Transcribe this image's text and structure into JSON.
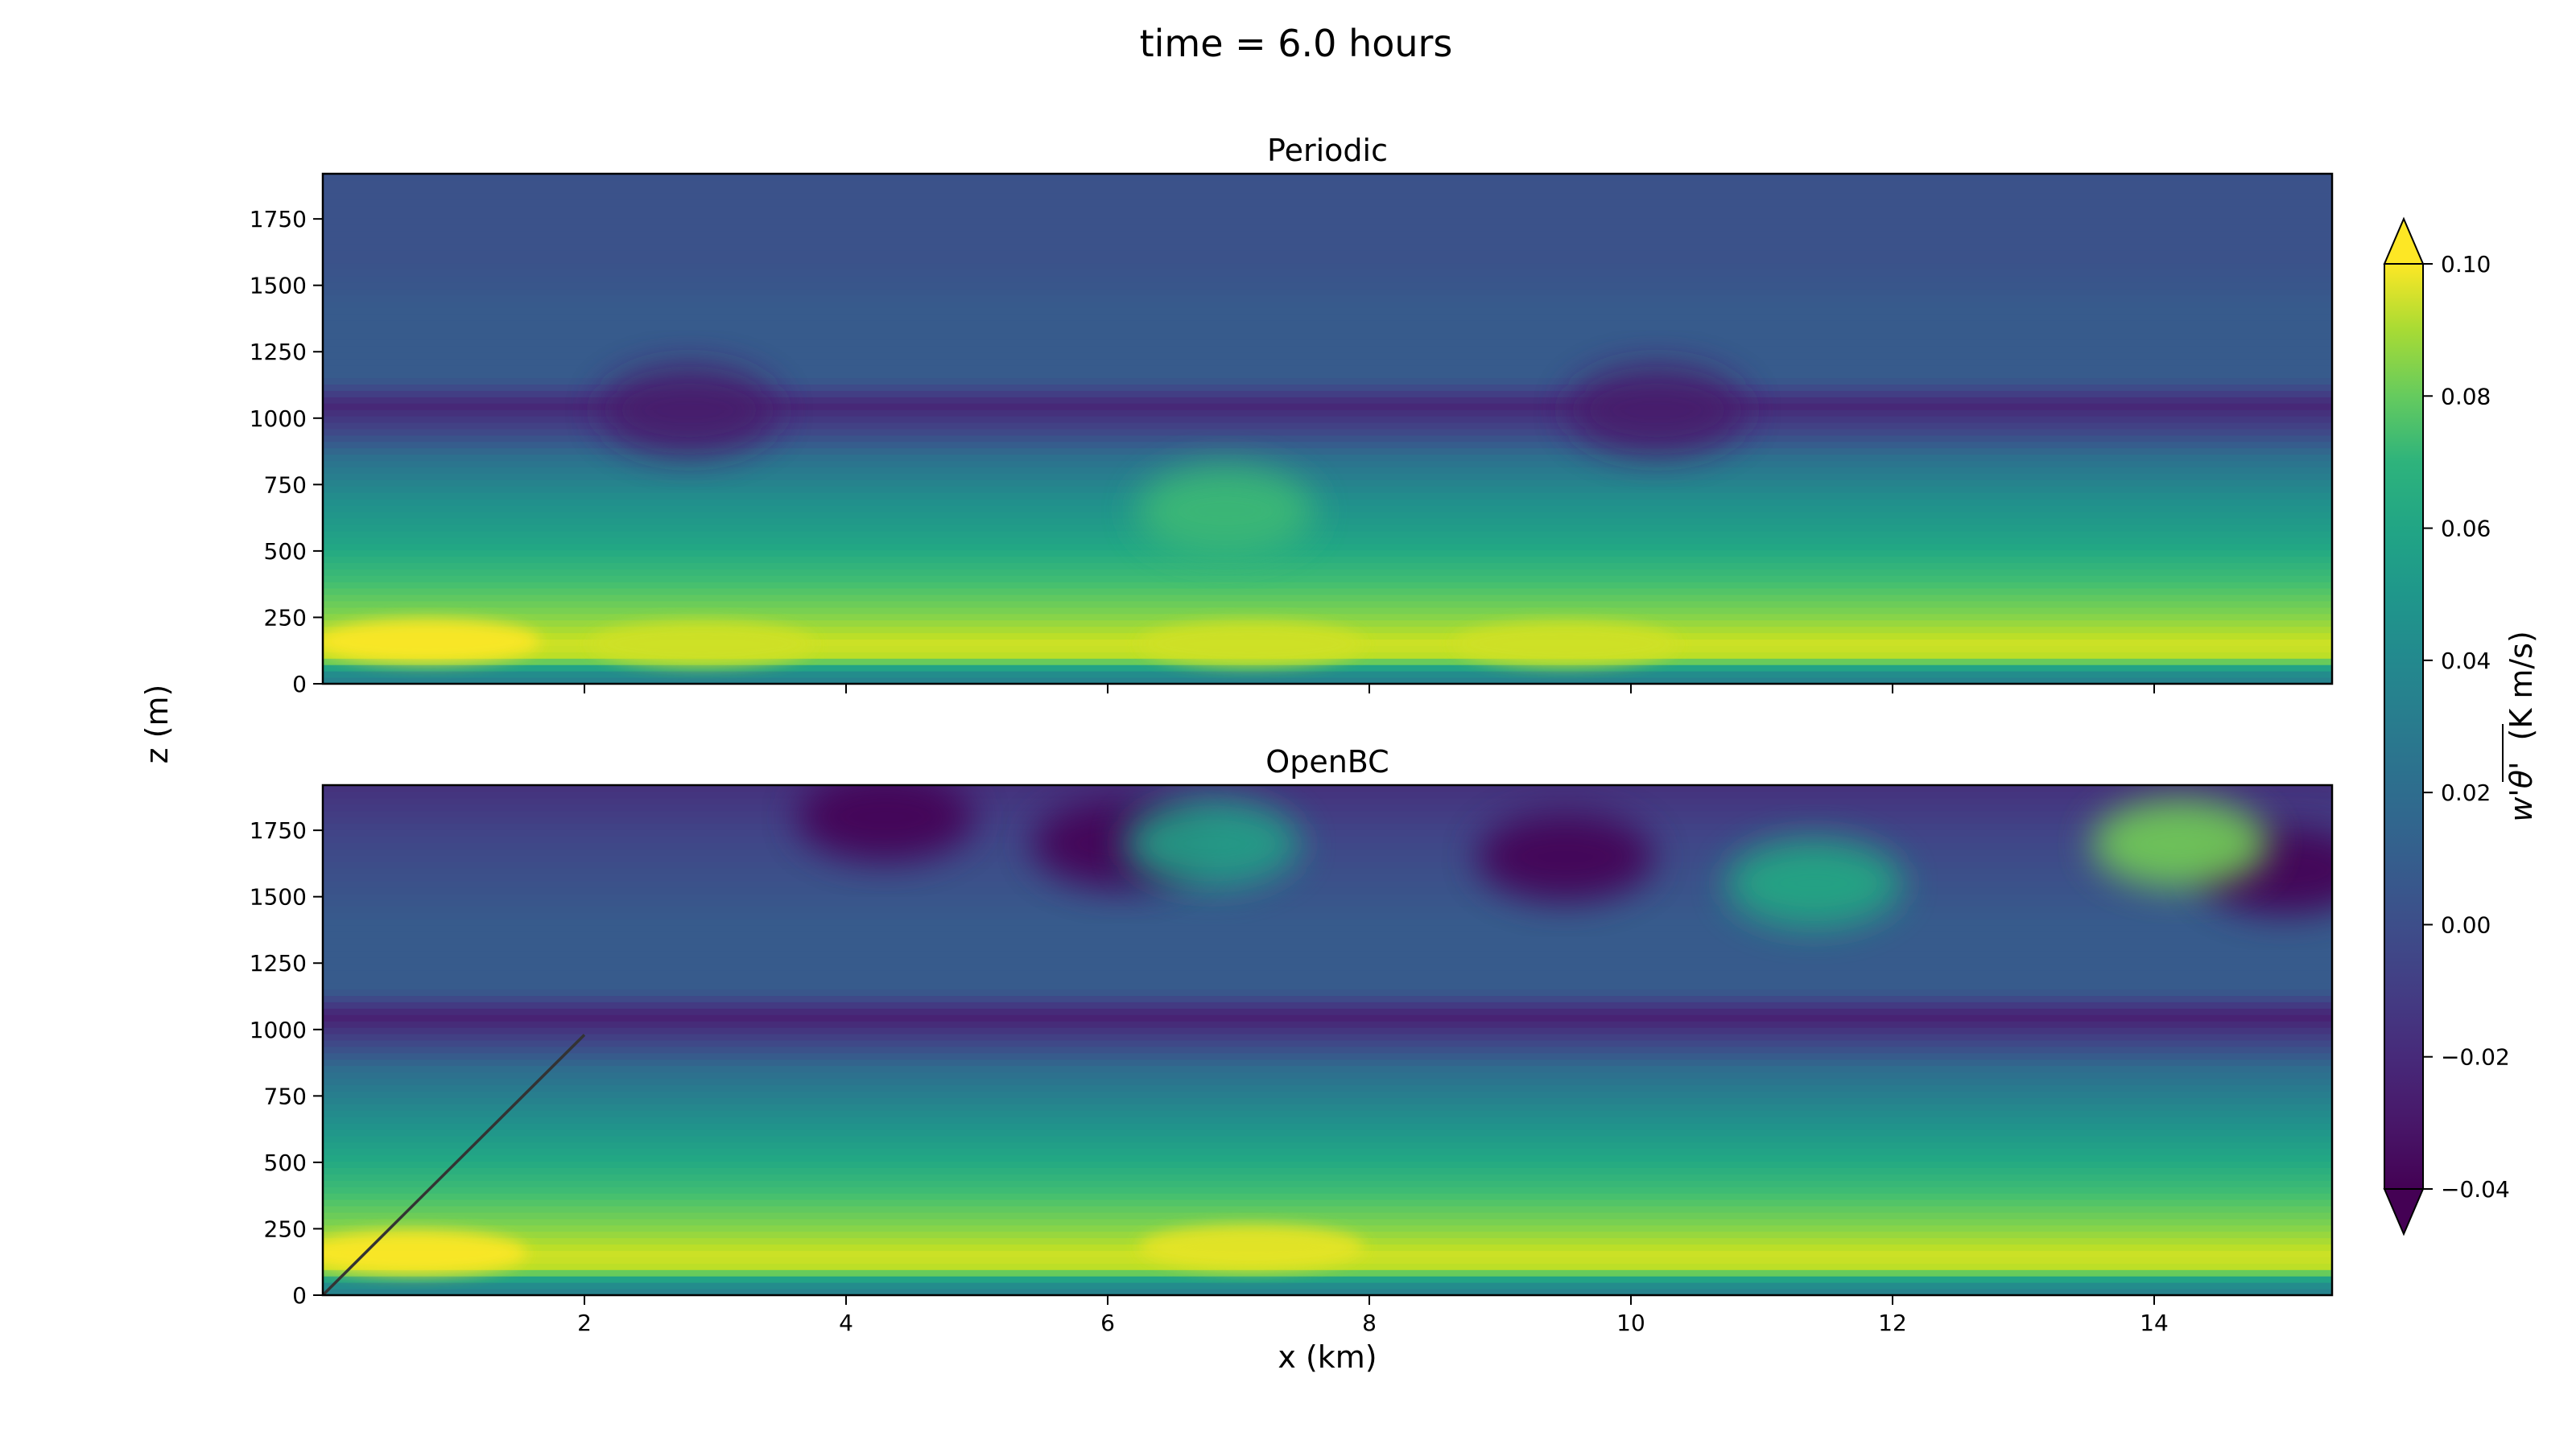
{
  "suptitle": "time = 6.0 hours",
  "shared": {
    "xlabel": "x (km)",
    "ylabel": "z (m)",
    "xlim": [
      0,
      15.36
    ],
    "ylim": [
      0,
      1920
    ],
    "x_ticks": [
      2,
      4,
      6,
      8,
      10,
      12,
      14
    ],
    "y_ticks": [
      0,
      250,
      500,
      750,
      1000,
      1250,
      1500,
      1750
    ]
  },
  "colorbar": {
    "label": "w'θ' (K m/s)",
    "label_main": "w'θ'",
    "label_unit": "(K m/s)",
    "ticks": [
      "0.10",
      "0.08",
      "0.06",
      "0.04",
      "0.02",
      "0.00",
      "−0.02",
      "−0.04"
    ],
    "range": [
      -0.04,
      0.1
    ],
    "extend": "both",
    "colormap": "viridis"
  },
  "chart_data": [
    {
      "type": "heatmap",
      "title": "Periodic",
      "xlabel": "",
      "ylabel": "z (m)",
      "x_range_km": [
        0,
        15.36
      ],
      "z_range_m": [
        0,
        1920
      ],
      "levels": [
        -0.04,
        -0.03,
        -0.02,
        -0.01,
        0.0,
        0.01,
        0.02,
        0.03,
        0.04,
        0.05,
        0.06,
        0.07,
        0.08,
        0.09,
        0.1
      ],
      "vertical_profile": [
        {
          "z": 0,
          "value": 0.02
        },
        {
          "z": 50,
          "value": 0.03
        },
        {
          "z": 100,
          "value": 0.085
        },
        {
          "z": 150,
          "value": 0.09
        },
        {
          "z": 250,
          "value": 0.075
        },
        {
          "z": 400,
          "value": 0.055
        },
        {
          "z": 550,
          "value": 0.04
        },
        {
          "z": 700,
          "value": 0.028
        },
        {
          "z": 850,
          "value": 0.012
        },
        {
          "z": 950,
          "value": -0.01
        },
        {
          "z": 1050,
          "value": -0.025
        },
        {
          "z": 1150,
          "value": 0.0
        },
        {
          "z": 1400,
          "value": 0.0
        },
        {
          "z": 1600,
          "value": -0.005
        },
        {
          "z": 1920,
          "value": -0.005
        }
      ],
      "features": [
        {
          "x": 0.8,
          "z": 160,
          "value": 0.1
        },
        {
          "x": 2.9,
          "z": 150,
          "value": 0.09
        },
        {
          "x": 7.1,
          "z": 150,
          "value": 0.09
        },
        {
          "x": 9.5,
          "z": 150,
          "value": 0.09
        },
        {
          "x": 6.9,
          "z": 650,
          "value": 0.055
        },
        {
          "x": 10.2,
          "z": 1030,
          "value": -0.03
        },
        {
          "x": 2.8,
          "z": 1030,
          "value": -0.03
        }
      ]
    },
    {
      "type": "heatmap",
      "title": "OpenBC",
      "xlabel": "x (km)",
      "ylabel": "z (m)",
      "x_range_km": [
        0,
        15.36
      ],
      "z_range_m": [
        0,
        1920
      ],
      "levels": [
        -0.04,
        -0.03,
        -0.02,
        -0.01,
        0.0,
        0.01,
        0.02,
        0.03,
        0.04,
        0.05,
        0.06,
        0.07,
        0.08,
        0.09,
        0.1
      ],
      "vertical_profile": [
        {
          "z": 0,
          "value": 0.02
        },
        {
          "z": 50,
          "value": 0.03
        },
        {
          "z": 100,
          "value": 0.085
        },
        {
          "z": 150,
          "value": 0.09
        },
        {
          "z": 250,
          "value": 0.075
        },
        {
          "z": 400,
          "value": 0.055
        },
        {
          "z": 550,
          "value": 0.04
        },
        {
          "z": 700,
          "value": 0.025
        },
        {
          "z": 850,
          "value": 0.01
        },
        {
          "z": 950,
          "value": -0.01
        },
        {
          "z": 1050,
          "value": -0.028
        },
        {
          "z": 1150,
          "value": 0.0
        },
        {
          "z": 1400,
          "value": 0.0
        },
        {
          "z": 1700,
          "value": -0.01
        },
        {
          "z": 1920,
          "value": -0.02
        }
      ],
      "features": [
        {
          "x": 0.7,
          "z": 160,
          "value": 0.1
        },
        {
          "x": 7.1,
          "z": 180,
          "value": 0.095
        },
        {
          "x": 4.3,
          "z": 1800,
          "value": -0.04
        },
        {
          "x": 6.1,
          "z": 1700,
          "value": -0.04
        },
        {
          "x": 9.5,
          "z": 1650,
          "value": -0.04
        },
        {
          "x": 15.0,
          "z": 1600,
          "value": -0.04
        },
        {
          "x": 14.2,
          "z": 1700,
          "value": 0.07
        },
        {
          "x": 11.4,
          "z": 1550,
          "value": 0.045
        },
        {
          "x": 6.8,
          "z": 1700,
          "value": 0.04
        }
      ],
      "line_annotation": {
        "x": [
          0,
          2
        ],
        "z": [
          0,
          980
        ]
      }
    }
  ]
}
